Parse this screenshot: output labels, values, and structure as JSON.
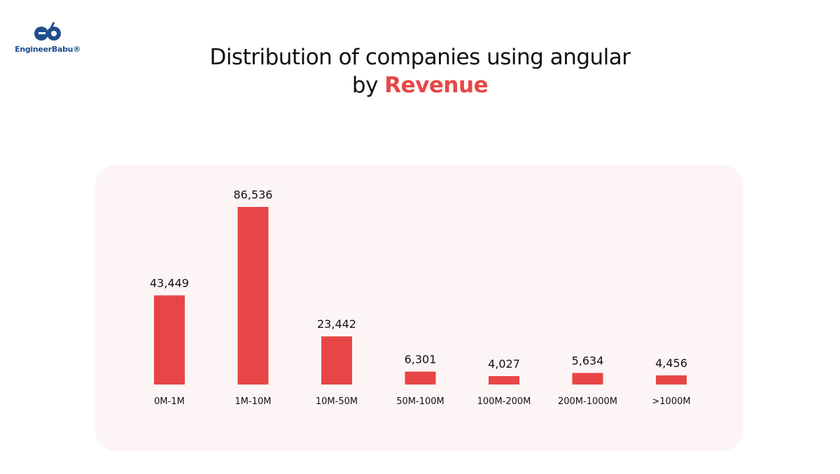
{
  "brand": {
    "name": "EngineerBabu®",
    "color": "#1f4e8c"
  },
  "title": {
    "line1": "Distribution of companies using angular",
    "line2_prefix": "by ",
    "line2_accent": "Revenue",
    "accent_color": "#e84646"
  },
  "chart_data": {
    "type": "bar",
    "title": "Distribution of companies using angular by Revenue",
    "categories": [
      "0M-1M",
      "1M-10M",
      "10M-50M",
      "50M-100M",
      "100M-200M",
      "200M-1000M",
      ">1000M"
    ],
    "values": [
      43449,
      86536,
      23442,
      6301,
      4027,
      5634,
      4456
    ],
    "value_labels": [
      "43,449",
      "86,536",
      "23,442",
      "6,301",
      "4,027",
      "5,634",
      "4,456"
    ],
    "bar_color": "#e84646",
    "grid": false,
    "axes_visible": false
  }
}
